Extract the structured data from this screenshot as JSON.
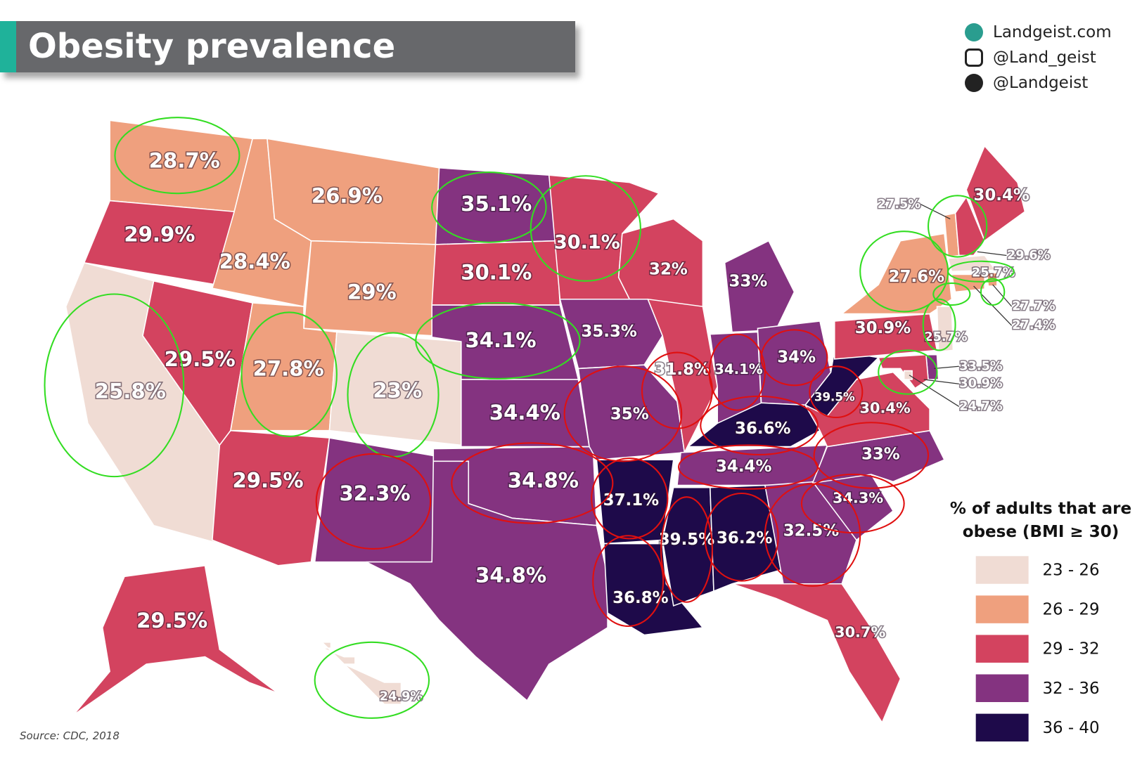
{
  "header": {
    "title": "Obesity prevalence"
  },
  "credits": [
    "Landgeist.com",
    "@Land_geist",
    "@Landgeist"
  ],
  "source": "Source: CDC, 2018",
  "legend": {
    "title": "% of adults that are obese (BMI ≥ 30)",
    "bins": [
      23,
      26,
      29,
      32,
      36,
      40
    ],
    "labels": [
      "23 - 26",
      "26 - 29",
      "29 - 32",
      "32 - 36",
      "36 - 40"
    ],
    "colors": [
      "#f0dcd4",
      "#efa07e",
      "#d3435f",
      "#843380",
      "#1e0a4a"
    ]
  },
  "states": {
    "values": [
      28.7,
      29.9,
      25.8,
      29.5,
      28.4,
      26.9,
      29,
      27.8,
      23,
      29.5,
      32.3,
      35.1,
      30.1,
      34.1,
      34.4,
      34.8,
      34.8,
      30.1,
      35.3,
      35,
      37.1,
      36.8,
      32,
      31.8,
      33,
      34.1,
      34,
      36.6,
      34.4,
      39.5,
      36.2,
      32.5,
      30.7,
      34.3,
      33,
      30.4,
      39.5,
      30.9,
      27.6,
      30.4,
      27.5,
      29.6,
      25.7,
      27.7,
      27.4,
      25.7,
      33.5,
      30.9,
      24.7,
      29.5,
      24.9
    ],
    "value_labels": [
      "28.7%",
      "29.9%",
      "25.8%",
      "29.5%",
      "28.4%",
      "26.9%",
      "29%",
      "27.8%",
      "23%",
      "29.5%",
      "32.3%",
      "35.1%",
      "30.1%",
      "34.1%",
      "34.4%",
      "34.8%",
      "34.8%",
      "30.1%",
      "35.3%",
      "35%",
      "37.1%",
      "36.8%",
      "32%",
      "31.8%",
      "33%",
      "34.1%",
      "34%",
      "36.6%",
      "34.4%",
      "39.5%",
      "36.2%",
      "32.5%",
      "30.7%",
      "34.3%",
      "33%",
      "30.4%",
      "39.5%",
      "30.9%",
      "27.6%",
      "30.4%",
      "27.5%",
      "29.6%",
      "25.7%",
      "27.7%",
      "27.4%",
      "25.7%",
      "33.5%",
      "30.9%",
      "24.7%",
      "29.5%",
      "24.9%"
    ]
  }
}
